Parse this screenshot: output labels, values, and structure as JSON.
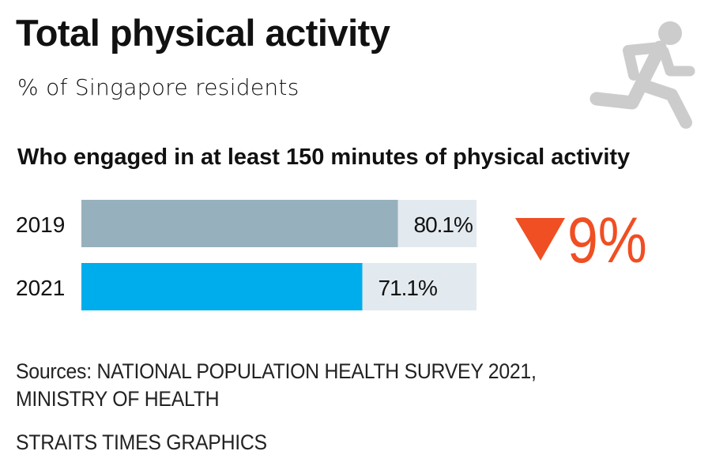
{
  "title": "Total physical activity",
  "subtitle": "% of Singapore residents",
  "chart_data": {
    "type": "bar",
    "orientation": "horizontal",
    "title": "Who engaged in at least 150 minutes of physical activity",
    "categories": [
      "2019",
      "2021"
    ],
    "values": [
      80.1,
      71.1
    ],
    "value_labels": [
      "80.1%",
      "71.1%"
    ],
    "xlim": [
      0,
      100
    ],
    "grid": false,
    "colors": {
      "2019": "#97b0bd",
      "2021": "#00adec",
      "track": "#e3eaef"
    },
    "annotation": {
      "text": "9%",
      "icon": "down-triangle-icon",
      "color": "#f04e23"
    }
  },
  "icon": "running-person-icon",
  "sources": [
    "Sources: NATIONAL POPULATION HEALTH SURVEY 2021,",
    "MINISTRY OF HEALTH"
  ],
  "credit": "STRAITS TIMES GRAPHICS"
}
